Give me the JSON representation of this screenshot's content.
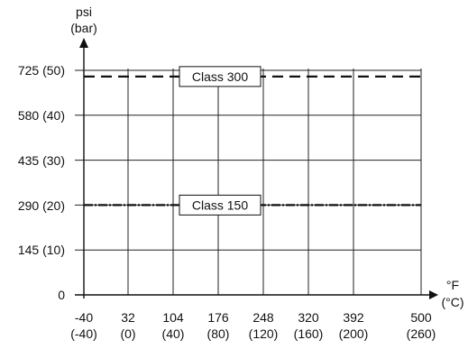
{
  "chart_data": {
    "type": "line",
    "title": "",
    "y_unit": [
      "psi",
      "(bar)"
    ],
    "x_unit": [
      "°F",
      "(°C)"
    ],
    "x": [
      -40,
      32,
      104,
      176,
      248,
      320,
      392,
      500
    ],
    "x_tick_labels": [
      [
        "-40",
        "(-40)"
      ],
      [
        "32",
        "(0)"
      ],
      [
        "104",
        "(40)"
      ],
      [
        "176",
        "(80)"
      ],
      [
        "248",
        "(120)"
      ],
      [
        "320",
        "(160)"
      ],
      [
        "392",
        "(200)"
      ],
      [
        "500",
        "(260)"
      ]
    ],
    "y_ticks": [
      0,
      145,
      290,
      435,
      580,
      725
    ],
    "y_tick_labels": [
      "0",
      "145 (10)",
      "290 (20)",
      "435 (30)",
      "580 (40)",
      "725 (50)"
    ],
    "ylim": [
      0,
      725
    ],
    "grid": true,
    "series": [
      {
        "name": "Class 300",
        "style": "dashed",
        "x": [
          -40,
          500
        ],
        "values": [
          705,
          705
        ]
      },
      {
        "name": "Class 150",
        "style": "dash-dot",
        "x": [
          -40,
          500
        ],
        "values": [
          290,
          290
        ]
      }
    ]
  }
}
